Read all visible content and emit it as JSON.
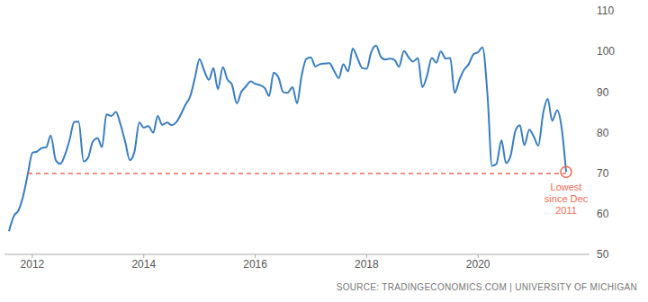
{
  "chart_data": {
    "type": "line",
    "source": "SOURCE: TRADINGECONOMICS.COM | UNIVERSITY OF MICHIGAN",
    "x": [
      2011.58,
      2011.67,
      2011.75,
      2011.83,
      2011.92,
      2012,
      2012.08,
      2012.17,
      2012.25,
      2012.33,
      2012.42,
      2012.5,
      2012.58,
      2012.67,
      2012.75,
      2012.83,
      2012.92,
      2013,
      2013.08,
      2013.17,
      2013.25,
      2013.33,
      2013.42,
      2013.5,
      2013.58,
      2013.67,
      2013.75,
      2013.83,
      2013.92,
      2014,
      2014.08,
      2014.17,
      2014.25,
      2014.33,
      2014.42,
      2014.5,
      2014.58,
      2014.67,
      2014.75,
      2014.83,
      2014.92,
      2015,
      2015.08,
      2015.17,
      2015.25,
      2015.33,
      2015.42,
      2015.5,
      2015.58,
      2015.67,
      2015.75,
      2015.83,
      2015.92,
      2016,
      2016.08,
      2016.17,
      2016.25,
      2016.33,
      2016.42,
      2016.5,
      2016.58,
      2016.67,
      2016.75,
      2016.83,
      2016.92,
      2017,
      2017.08,
      2017.17,
      2017.25,
      2017.33,
      2017.42,
      2017.5,
      2017.58,
      2017.67,
      2017.75,
      2017.83,
      2017.92,
      2018,
      2018.08,
      2018.17,
      2018.25,
      2018.33,
      2018.42,
      2018.5,
      2018.58,
      2018.67,
      2018.75,
      2018.83,
      2018.92,
      2019,
      2019.08,
      2019.17,
      2019.25,
      2019.33,
      2019.42,
      2019.5,
      2019.58,
      2019.67,
      2019.75,
      2019.83,
      2019.92,
      2020,
      2020.08,
      2020.17,
      2020.25,
      2020.33,
      2020.42,
      2020.5,
      2020.58,
      2020.67,
      2020.75,
      2020.83,
      2020.92,
      2021,
      2021.08,
      2021.17,
      2021.25,
      2021.33,
      2021.42,
      2021.5,
      2021.58
    ],
    "values": [
      55.7,
      59.5,
      60.8,
      64.1,
      69.9,
      75.0,
      75.3,
      76.2,
      76.4,
      79.3,
      73.2,
      72.3,
      74.3,
      78.3,
      82.6,
      82.7,
      72.9,
      73.8,
      77.6,
      78.6,
      76.4,
      84.5,
      84.1,
      85.1,
      82.1,
      77.5,
      73.2,
      75.1,
      82.5,
      81.2,
      81.6,
      80.0,
      84.1,
      81.9,
      82.5,
      81.8,
      82.5,
      84.6,
      86.9,
      88.8,
      93.6,
      98.1,
      95.4,
      93.0,
      95.9,
      90.7,
      96.1,
      93.1,
      91.9,
      87.2,
      90.0,
      91.3,
      92.6,
      92.0,
      91.7,
      91.0,
      89.0,
      94.7,
      93.5,
      90.0,
      89.8,
      91.2,
      87.2,
      93.8,
      98.2,
      98.5,
      96.3,
      96.9,
      97.0,
      97.1,
      95.1,
      93.4,
      96.8,
      95.1,
      100.7,
      98.5,
      95.9,
      95.7,
      99.7,
      101.4,
      98.8,
      98.0,
      98.2,
      97.9,
      96.2,
      100.1,
      98.6,
      97.5,
      98.3,
      91.2,
      93.8,
      98.4,
      97.2,
      100.0,
      98.2,
      98.4,
      89.8,
      93.2,
      95.5,
      96.8,
      99.3,
      99.8,
      101.0,
      89.1,
      71.8,
      72.3,
      78.1,
      72.5,
      74.1,
      80.4,
      81.8,
      76.9,
      80.7,
      79.0,
      76.8,
      84.9,
      88.3,
      82.9,
      85.5,
      81.2,
      70.3
    ],
    "color": "#3a7dbf",
    "xlim": [
      2011.5,
      2022
    ],
    "xticks": [
      2012,
      2014,
      2016,
      2018,
      2020
    ],
    "ylim": [
      50,
      110
    ],
    "yticks": [
      50,
      60,
      70,
      80,
      90,
      100,
      110
    ],
    "grid": false,
    "annotations": [
      {
        "text": "Lowest since Dec 2011",
        "x": 2011.92,
        "y": 69.9,
        "color": "#f26b55",
        "line_style": "dashed",
        "marker": "circle"
      }
    ]
  }
}
